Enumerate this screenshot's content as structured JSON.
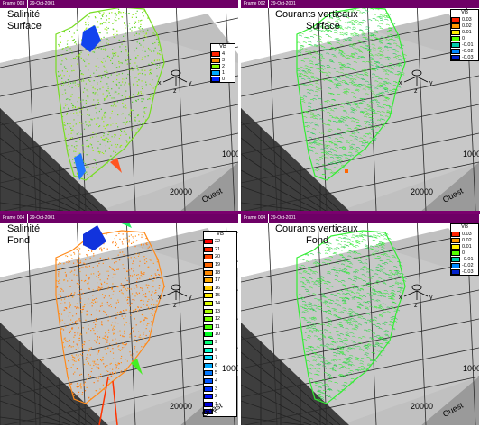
{
  "panels": [
    {
      "frame": "Frame 003",
      "date": "29-Oct-2001",
      "title": [
        "Salinité",
        "Surface"
      ],
      "legend": {
        "name": "VB",
        "labels": [
          "4",
          "3",
          "2",
          "1",
          "0"
        ],
        "colors": [
          "#ff2200",
          "#ff8800",
          "#88ff00",
          "#00aaff",
          "#0022ff"
        ]
      },
      "axis_labels": {
        "x": "20000",
        "y": "1000",
        "dir": "Ouest"
      },
      "field_colors": [
        "#77dd22",
        "#99ee11",
        "#55cc33"
      ]
    },
    {
      "frame": "Frame 002",
      "date": "29-Oct-2001",
      "title": [
        "Courants verticaux",
        "Surface"
      ],
      "legend": {
        "name": "VB",
        "labels": [
          "0.03",
          "0.02",
          "0.01",
          "0",
          "-0.01",
          "-0.02",
          "-0.03"
        ],
        "colors": [
          "#ff2200",
          "#ff9900",
          "#ffee00",
          "#55ff00",
          "#00ccaa",
          "#0088ff",
          "#0022cc"
        ]
      },
      "axis_labels": {
        "x": "20000",
        "y": "1000",
        "dir": "Ouest"
      },
      "field_colors": [
        "#33ee33",
        "#55dd44",
        "#22cc55"
      ]
    },
    {
      "frame": "Frame 004",
      "date": "29-Oct-2001",
      "title": [
        "Salinité",
        "Fond"
      ],
      "legend": {
        "name": "VB",
        "labels": [
          "22",
          "21",
          "20",
          "19",
          "18",
          "17",
          "16",
          "15",
          "14",
          "13",
          "12",
          "11",
          "10",
          "9",
          "8",
          "7",
          "6",
          "5",
          "4",
          "3",
          "2",
          "1",
          "0"
        ],
        "colors": [
          "#ff0000",
          "#ff2200",
          "#ff4400",
          "#ff6600",
          "#ff8800",
          "#ffaa00",
          "#ffcc00",
          "#ffee00",
          "#ddff00",
          "#aaff00",
          "#77ff00",
          "#44ff00",
          "#00ff22",
          "#00ff77",
          "#00ffcc",
          "#00ddff",
          "#00aaff",
          "#0077ff",
          "#0055ff",
          "#0033ff",
          "#0011ff",
          "#0000dd",
          "#0000aa"
        ]
      },
      "axis_labels": {
        "x": "20000",
        "y": "1000",
        "dir": "Ouest"
      },
      "field_colors": [
        "#ff8a1a",
        "#ff9922",
        "#ff7711"
      ]
    },
    {
      "frame": "Frame 004",
      "date": "29-Oct-2001",
      "title": [
        "Courants verticaux",
        "Fond"
      ],
      "legend": {
        "name": "VB",
        "labels": [
          "0.03",
          "0.02",
          "0.01",
          "0",
          "-0.01",
          "-0.02",
          "-0.03"
        ],
        "colors": [
          "#ff2200",
          "#ff9900",
          "#ffee00",
          "#55ff00",
          "#00ccaa",
          "#0088ff",
          "#0022cc"
        ]
      },
      "axis_labels": {
        "x": "20000",
        "y": "1000",
        "dir": "Ouest"
      },
      "field_colors": [
        "#33ee33",
        "#44dd55",
        "#22cc44"
      ]
    }
  ],
  "axes_gizmo": {
    "x": "x",
    "y": "y",
    "z": "z"
  }
}
